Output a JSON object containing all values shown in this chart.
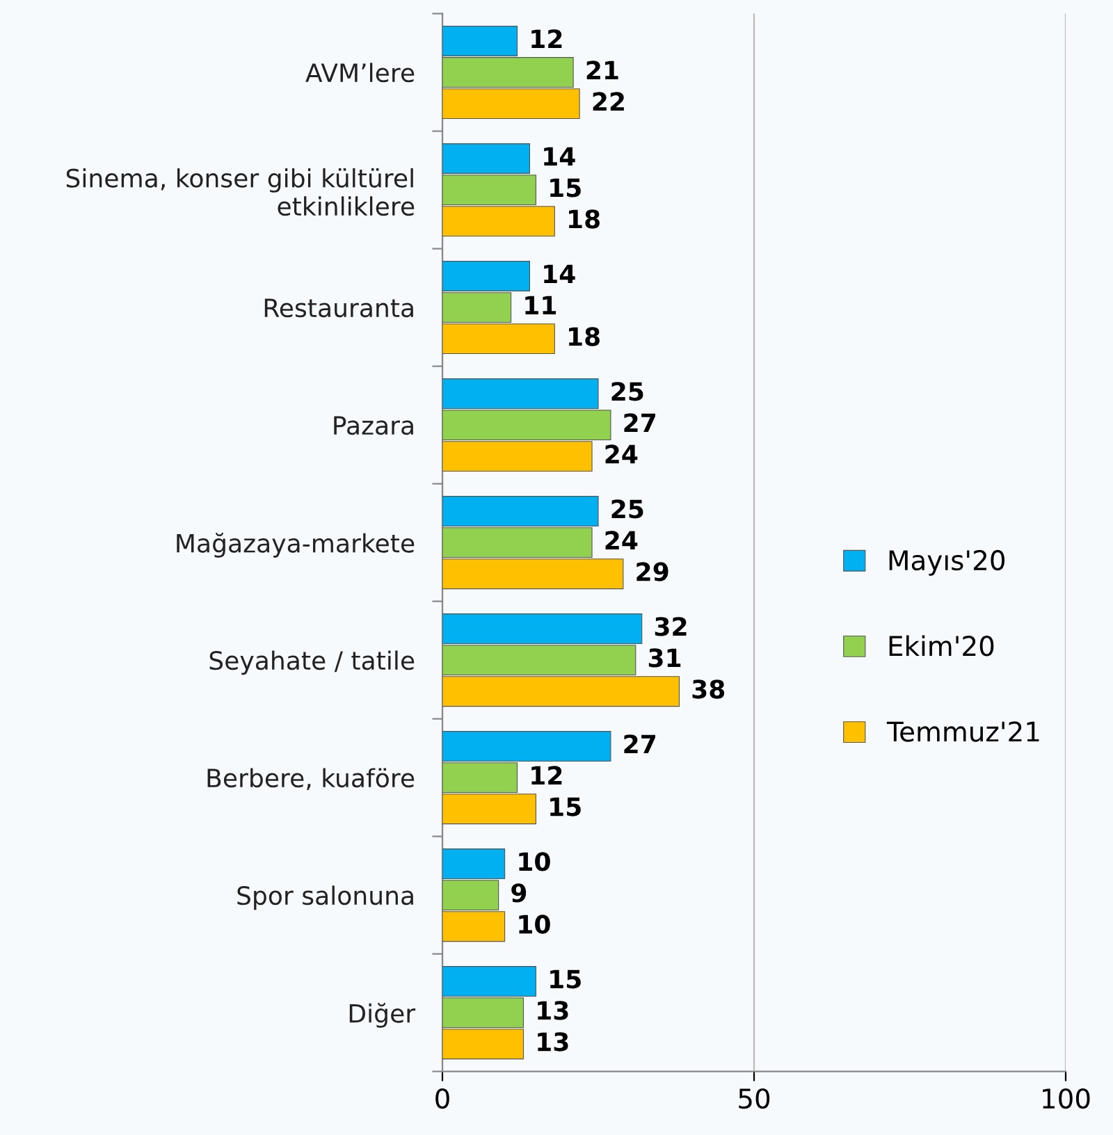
{
  "chart_data": {
    "type": "bar",
    "orientation": "horizontal",
    "categories": [
      "AVM’lere",
      "Sinema, konser gibi kültürel\netkinliklere",
      "Restauranta",
      "Pazara",
      "Mağazaya-markete",
      "Seyahate / tatile",
      "Berbere, kuaföre",
      "Spor salonuna",
      "Diğer"
    ],
    "series": [
      {
        "name": "Mayıs'20",
        "color": "#00b0f0",
        "values": [
          12,
          14,
          14,
          25,
          25,
          32,
          27,
          10,
          15
        ]
      },
      {
        "name": "Ekim'20",
        "color": "#92d050",
        "values": [
          21,
          15,
          11,
          27,
          24,
          31,
          12,
          9,
          13
        ]
      },
      {
        "name": "Temmuz'21",
        "color": "#ffc000",
        "values": [
          22,
          18,
          18,
          24,
          29,
          38,
          15,
          10,
          13
        ]
      }
    ],
    "xlim": [
      0,
      100
    ],
    "xticks": [
      0,
      50,
      100
    ],
    "grid": "x",
    "legend": "right",
    "data_labels": true
  }
}
